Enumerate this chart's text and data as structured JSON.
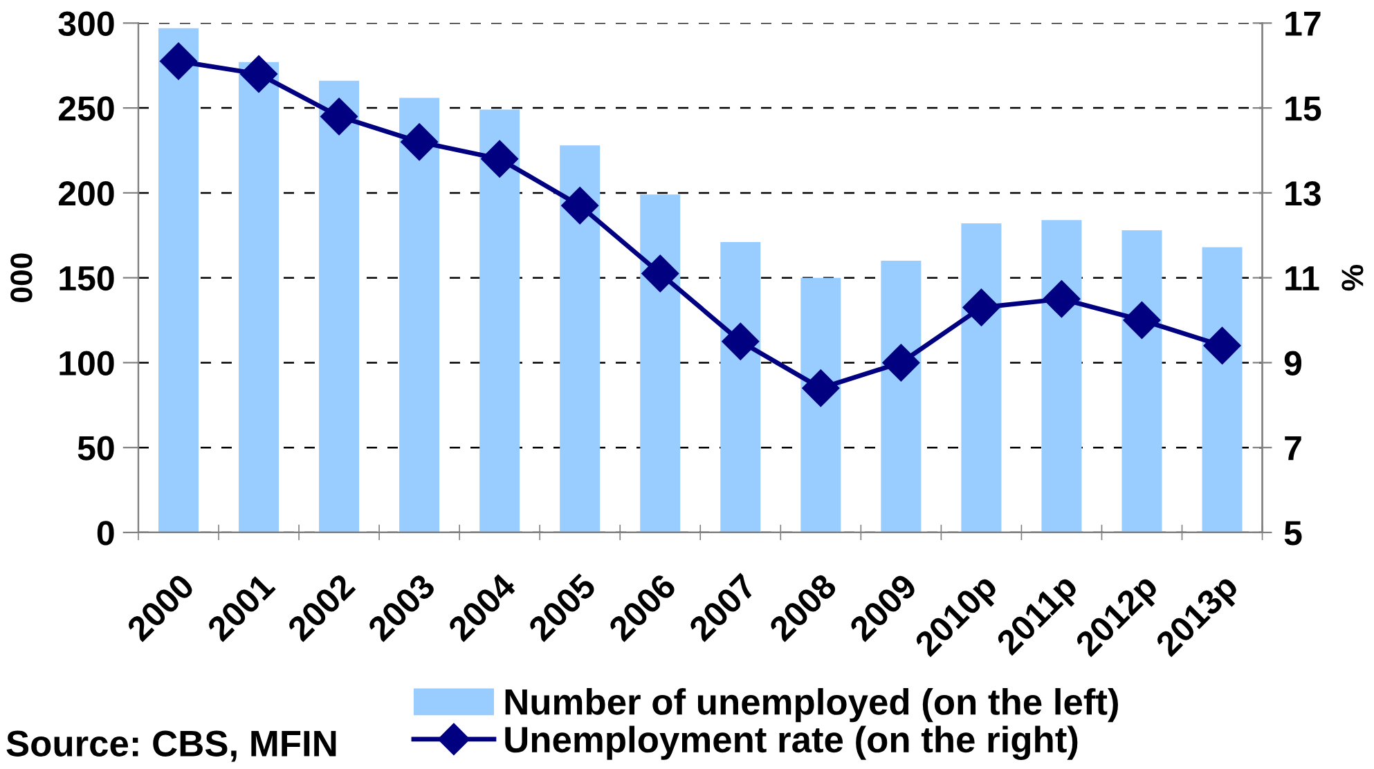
{
  "chart_data": {
    "type": "bar",
    "categories": [
      "2000",
      "2001",
      "2002",
      "2003",
      "2004",
      "2005",
      "2006",
      "2007",
      "2008",
      "2009",
      "2010p",
      "2011p",
      "2012p",
      "2013p"
    ],
    "series": [
      {
        "name": "Number of unemployed (on the left)",
        "color": "#99ccff",
        "values": [
          297,
          277,
          266,
          256,
          249,
          228,
          199,
          171,
          150,
          160,
          182,
          184,
          178,
          168
        ]
      },
      {
        "name": "Unemployment rate (on the right)",
        "type": "line",
        "axis": "y2",
        "color": "#000080",
        "values": [
          16.1,
          15.8,
          14.8,
          14.2,
          13.8,
          12.7,
          11.1,
          9.5,
          8.4,
          9.0,
          10.3,
          10.5,
          10.0,
          9.4
        ]
      }
    ],
    "ylabel": "000",
    "y2label": "%",
    "ylim": [
      0,
      300
    ],
    "yticks": [
      0,
      50,
      100,
      150,
      200,
      250,
      300
    ],
    "y2lim": [
      5,
      17
    ],
    "y2ticks": [
      5,
      7,
      9,
      11,
      13,
      15,
      17
    ],
    "grid": "y",
    "legend": "bottom",
    "marker": "diamond",
    "line_style": "solid",
    "annotations": [
      "Source: CBS, MFIN"
    ]
  }
}
